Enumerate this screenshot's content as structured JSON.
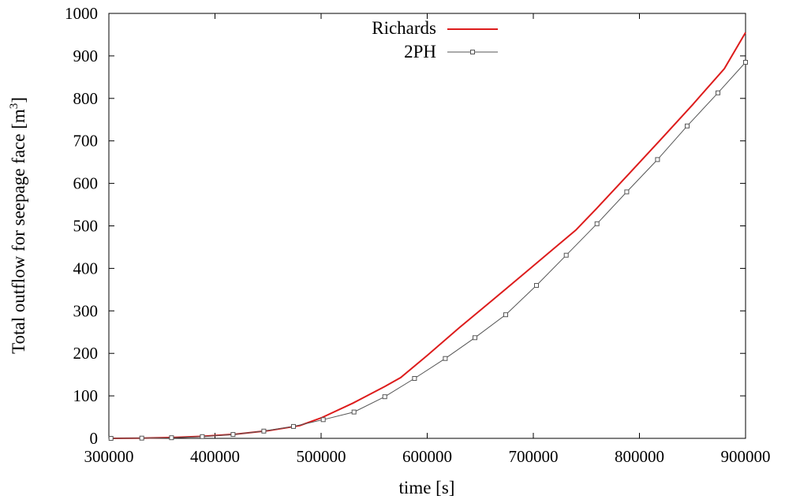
{
  "chart_data": {
    "type": "line",
    "title": "",
    "xlabel": "time [s]",
    "ylabel_main": "Total outflow for seepage face [m",
    "ylabel_sup": "3",
    "ylabel_close": "]",
    "xlim": [
      300000,
      900000
    ],
    "ylim": [
      0,
      1000
    ],
    "xticks": [
      300000,
      400000,
      500000,
      600000,
      700000,
      800000,
      900000
    ],
    "yticks": [
      0,
      100,
      200,
      300,
      400,
      500,
      600,
      700,
      800,
      900,
      1000
    ],
    "xtick_labels": [
      "300000",
      "400000",
      "500000",
      "600000",
      "700000",
      "800000",
      "900000"
    ],
    "ytick_labels": [
      "0",
      "100",
      "200",
      "300",
      "400",
      "500",
      "600",
      "700",
      "800",
      "900",
      "1000"
    ],
    "grid": false,
    "legend_position": "top-center",
    "series": [
      {
        "name": "Richards",
        "color": "#dd1c1c",
        "marker": "none",
        "x": [
          302000,
          330000,
          360000,
          390000,
          420000,
          450000,
          480000,
          500000,
          530000,
          560000,
          575000,
          600000,
          630000,
          660000,
          690000,
          720000,
          740000,
          760000,
          790000,
          820000,
          850000,
          880000,
          900000
        ],
        "y": [
          0,
          0.5,
          2,
          5,
          10,
          18,
          30,
          48,
          83,
          122,
          143,
          195,
          260,
          322,
          385,
          448,
          490,
          542,
          622,
          703,
          785,
          870,
          955
        ]
      },
      {
        "name": "2PH",
        "color": "#555555",
        "marker": "square",
        "x": [
          302000,
          331000,
          359000,
          388000,
          417000,
          446000,
          474000,
          502000,
          531000,
          560000,
          588000,
          617000,
          645000,
          674000,
          703000,
          731000,
          760000,
          788000,
          817000,
          845000,
          874000,
          900000
        ],
        "y": [
          0,
          0.5,
          1.5,
          4,
          9,
          17,
          28,
          44,
          62,
          98,
          141,
          188,
          237,
          291,
          360,
          431,
          505,
          580,
          656,
          735,
          813,
          885
        ]
      }
    ]
  }
}
